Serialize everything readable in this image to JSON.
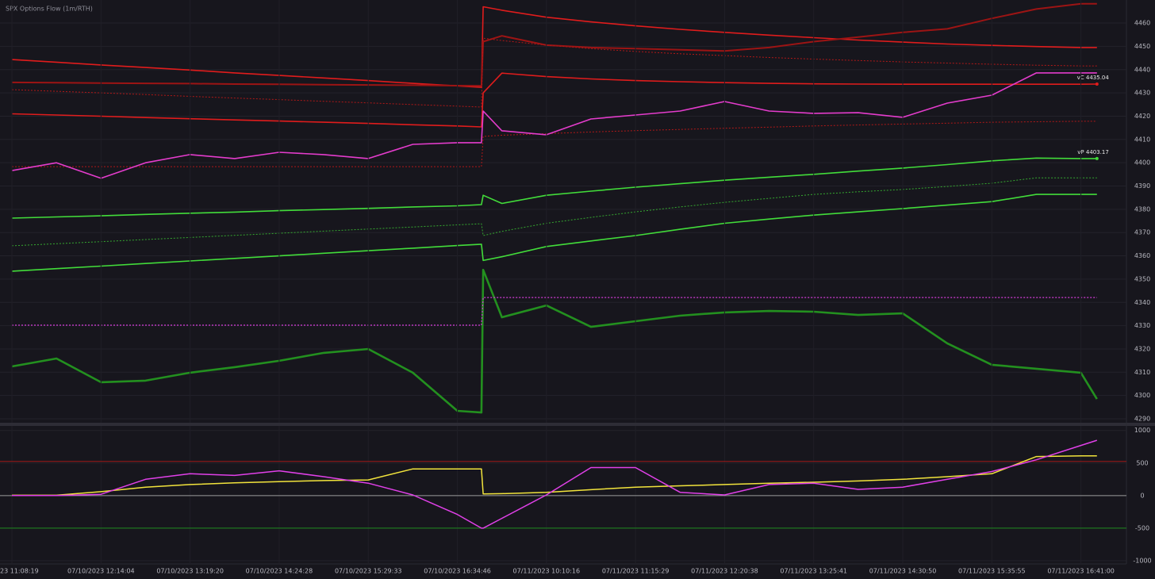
{
  "chart_data": [
    {
      "type": "line",
      "title": "SPX Options Flow (1m/RTH)",
      "x": [
        0,
        0.5,
        1,
        1.5,
        2,
        2.5,
        3,
        3.5,
        4,
        4.5,
        5,
        5.27,
        5.29,
        5.5,
        6,
        6.5,
        7,
        7.5,
        8,
        8.5,
        9,
        9.5,
        10,
        10.5,
        11,
        11.5,
        12,
        12.18
      ],
      "xlim": [
        -0.134,
        12.511
      ],
      "ylim": [
        4288.3,
        4469.9
      ],
      "yticks": [
        4290,
        4300,
        4310,
        4320,
        4330,
        4340,
        4350,
        4360,
        4370,
        4380,
        4390,
        4400,
        4410,
        4420,
        4430,
        4440,
        4450,
        4460
      ],
      "grid": true,
      "series": [
        {
          "color": "#e01c1c",
          "width": 1.6,
          "values": [
            4444.3,
            4443.2,
            4442.0,
            4440.9,
            4439.8,
            4438.6,
            4437.5,
            4436.4,
            4435.3,
            4434.1,
            4433.0,
            4432.4,
            4467.0,
            4465.5,
            4462.5,
            4460.5,
            4458.8,
            4457.3,
            4456.0,
            4454.8,
            4453.7,
            4452.7,
            4451.8,
            4451.0,
            4450.4,
            4449.9,
            4449.5,
            4449.5
          ]
        },
        {
          "color": "#9c1414",
          "width": 2,
          "values": [
            4434.5,
            4434.4,
            4434.2,
            4434.1,
            4434.0,
            4433.8,
            4433.7,
            4433.5,
            4433.4,
            4433.3,
            4433.1,
            4433.0,
            4452.0,
            4454.5,
            4450.5,
            4449.5,
            4449.0,
            4448.5,
            4448.0,
            4449.5,
            4452.0,
            4454.0,
            4456.0,
            4457.5,
            4462.0,
            4466.0,
            4468.3,
            4468.3
          ]
        },
        {
          "color": "#e01c1c",
          "width": 1.6,
          "label": "vC 4435.04",
          "values": [
            4421.0,
            4420.5,
            4420.0,
            4419.4,
            4418.9,
            4418.4,
            4417.9,
            4417.4,
            4416.9,
            4416.3,
            4415.8,
            4415.4,
            4430.0,
            4438.5,
            4437.0,
            4436.0,
            4435.3,
            4434.8,
            4434.4,
            4434.1,
            4433.9,
            4433.8,
            4433.7,
            4433.7,
            4433.7,
            4433.7,
            4433.7,
            4433.8
          ]
        },
        {
          "color": "#b01818",
          "width": 1,
          "dash": true,
          "values": [
            4431.4,
            4430.7,
            4430.0,
            4429.3,
            4428.5,
            4427.8,
            4427.1,
            4426.4,
            4425.7,
            4425.0,
            4424.3,
            4423.9,
            4453.5,
            4452.5,
            4450.5,
            4449.0,
            4447.8,
            4446.8,
            4446.0,
            4445.2,
            4444.5,
            4443.9,
            4443.3,
            4442.8,
            4442.3,
            4441.9,
            4441.6,
            4441.6
          ]
        },
        {
          "color": "#b01818",
          "width": 1,
          "dash": true,
          "values": [
            4398.3,
            4398.3,
            4398.3,
            4398.3,
            4398.3,
            4398.3,
            4398.3,
            4398.3,
            4398.3,
            4398.3,
            4398.3,
            4398.3,
            4411.3,
            4411.8,
            4412.5,
            4413.2,
            4413.8,
            4414.3,
            4414.8,
            4415.3,
            4415.8,
            4416.2,
            4416.6,
            4417.0,
            4417.4,
            4417.6,
            4417.8,
            4417.8
          ]
        },
        {
          "color": "#e43ccc",
          "width": 1.6,
          "values": [
            4396.6,
            4400.0,
            4393.3,
            4400.0,
            4403.5,
            4401.8,
            4404.5,
            4403.5,
            4401.8,
            4407.9,
            4408.6,
            4408.6,
            4422.2,
            4413.7,
            4412.0,
            4418.8,
            4420.5,
            4422.2,
            4426.3,
            4422.2,
            4421.2,
            4421.5,
            4419.5,
            4425.6,
            4429.0,
            4438.6,
            4438.6,
            4438.6
          ]
        },
        {
          "color": "#42dc3a",
          "width": 1.6,
          "label": "vP 4403.17",
          "values": [
            4376.2,
            4376.7,
            4377.2,
            4377.8,
            4378.3,
            4378.8,
            4379.4,
            4379.9,
            4380.4,
            4381.0,
            4381.5,
            4382.0,
            4386.0,
            4382.5,
            4386.0,
            4387.8,
            4389.5,
            4391.0,
            4392.5,
            4393.8,
            4395.0,
            4396.4,
            4397.7,
            4399.2,
            4400.8,
            4402.0,
            4401.8,
            4401.8
          ]
        },
        {
          "color": "#35a830",
          "width": 1,
          "dash": true,
          "values": [
            4364.3,
            4365.2,
            4366.1,
            4367.0,
            4367.9,
            4368.8,
            4369.7,
            4370.6,
            4371.5,
            4372.4,
            4373.3,
            4373.8,
            4368.7,
            4370.5,
            4374.0,
            4376.5,
            4378.9,
            4381.0,
            4383.0,
            4384.7,
            4386.4,
            4387.5,
            4388.5,
            4389.8,
            4391.2,
            4393.5,
            4393.5,
            4393.5
          ]
        },
        {
          "color": "#42dc3a",
          "width": 1.6,
          "values": [
            4353.4,
            4354.5,
            4355.6,
            4356.7,
            4357.8,
            4358.9,
            4360.0,
            4361.1,
            4362.2,
            4363.3,
            4364.4,
            4365.0,
            4358.0,
            4359.6,
            4364.0,
            4366.4,
            4368.7,
            4371.4,
            4374.0,
            4375.8,
            4377.5,
            4378.9,
            4380.3,
            4381.8,
            4383.3,
            4386.4,
            4386.4,
            4386.4
          ]
        },
        {
          "color": "#23901f",
          "width": 2.6,
          "values": [
            4312.5,
            4315.9,
            4305.7,
            4306.4,
            4309.8,
            4312.2,
            4314.9,
            4318.3,
            4320.0,
            4309.8,
            4293.4,
            4292.7,
            4354.0,
            4333.6,
            4338.7,
            4329.5,
            4331.9,
            4334.3,
            4335.7,
            4336.3,
            4336.0,
            4334.6,
            4335.3,
            4322.4,
            4313.2,
            4311.5,
            4309.8,
            4298.5
          ]
        },
        {
          "color": "#d43cd8",
          "width": 1.2,
          "dash": true,
          "values": [
            4330.2,
            4330.2,
            4330.2,
            4330.2,
            4330.2,
            4330.2,
            4330.2,
            4330.2,
            4330.2,
            4330.2,
            4330.2,
            4330.2,
            4342.1,
            4342.1,
            4342.1,
            4342.1,
            4342.1,
            4342.1,
            4342.1,
            4342.1,
            4342.1,
            4342.1,
            4342.1,
            4342.1,
            4342.1,
            4342.1,
            4342.1,
            4342.1
          ]
        }
      ]
    },
    {
      "type": "line",
      "x": [
        0,
        0.5,
        1,
        1.5,
        2,
        2.5,
        3,
        3.5,
        4,
        4.5,
        5,
        5.27,
        5.29,
        5.5,
        6,
        6.5,
        7,
        7.5,
        8,
        8.5,
        9,
        9.5,
        10,
        10.5,
        11,
        11.5,
        12,
        12.18
      ],
      "xlim": [
        -0.134,
        12.511
      ],
      "xticks": [
        {
          "value": 0,
          "label": "23 11:08:19"
        },
        {
          "value": 1,
          "label": "07/10/2023 12:14:04"
        },
        {
          "value": 2,
          "label": "07/10/2023 13:19:20"
        },
        {
          "value": 3,
          "label": "07/10/2023 14:24:28"
        },
        {
          "value": 4,
          "label": "07/10/2023 15:29:33"
        },
        {
          "value": 5,
          "label": "07/10/2023 16:34:46"
        },
        {
          "value": 6,
          "label": "07/11/2023 10:10:16"
        },
        {
          "value": 7,
          "label": "07/11/2023 11:15:29"
        },
        {
          "value": 8,
          "label": "07/11/2023 12:20:38"
        },
        {
          "value": 9,
          "label": "07/11/2023 13:25:41"
        },
        {
          "value": 10,
          "label": "07/11/2023 14:30:50"
        },
        {
          "value": 11,
          "label": "07/11/2023 15:35:55"
        },
        {
          "value": 12,
          "label": "07/11/2023 16:41:00"
        }
      ],
      "ylim": [
        -1050,
        1070
      ],
      "yticks": [
        -1000,
        -500,
        0,
        500,
        1000
      ],
      "grid": true,
      "hlines": [
        {
          "value": 525,
          "color": "#a01818"
        },
        {
          "value": 0,
          "color": "#9a9a9a"
        },
        {
          "value": -500,
          "color": "#1f8a1f"
        }
      ],
      "series": [
        {
          "color": "#f2e43c",
          "width": 1.5,
          "values": [
            5,
            5,
            60,
            130,
            170,
            195,
            215,
            230,
            240,
            410,
            410,
            410,
            25,
            30,
            50,
            90,
            130,
            150,
            170,
            190,
            205,
            225,
            250,
            290,
            335,
            600,
            610,
            610
          ]
        },
        {
          "color": "#e040e8",
          "width": 1.5,
          "values": [
            0,
            0,
            20,
            250,
            335,
            310,
            380,
            290,
            190,
            10,
            -290,
            -500,
            -500,
            -350,
            10,
            430,
            430,
            50,
            10,
            170,
            190,
            95,
            130,
            250,
            370,
            550,
            770,
            850
          ]
        }
      ]
    }
  ]
}
